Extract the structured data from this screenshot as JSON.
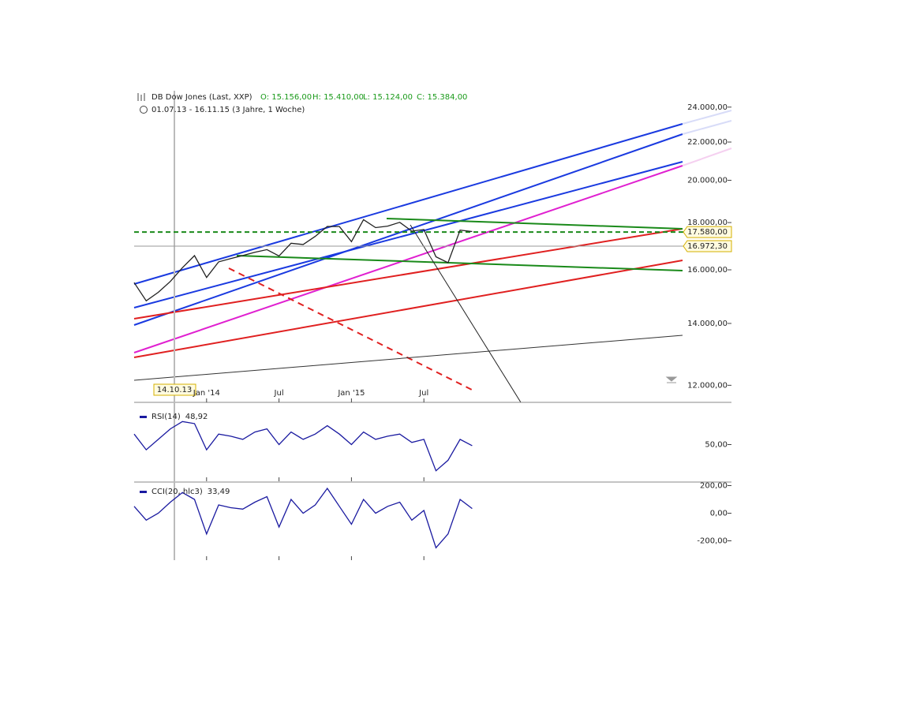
{
  "chart_data": [
    {
      "type": "line",
      "title": "DB Dow Jones (Last, XXP)",
      "subtitle": "01.07.13 - 16.11.15 (3 Jahre, 1 Woche)",
      "ohlc": [
        "O: 15.156,00",
        "H: 15.410,00",
        "L: 15.124,00",
        "C: 15.384,00"
      ],
      "crosshair_label": "14.10.13",
      "categories": [
        null,
        null,
        null,
        null,
        null,
        null,
        "Jan '14",
        null,
        null,
        null,
        null,
        null,
        "Jul",
        null,
        null,
        null,
        null,
        null,
        "Jan '15",
        null,
        null,
        null,
        null,
        null,
        "Jul",
        null,
        null,
        null,
        null
      ],
      "series": [
        {
          "color": "#222222",
          "values": [
            15500,
            14810,
            15130,
            15545,
            16086,
            16577,
            15699,
            16322,
            16458,
            16581,
            16717,
            16827,
            16563,
            17098,
            17043,
            17391,
            17828,
            17823,
            17165,
            18133,
            17776,
            17841,
            18011,
            17620,
            17690,
            16528,
            16285,
            17664,
            17600
          ]
        }
      ],
      "log_scale": true,
      "ylim": [
        11500,
        25000
      ],
      "yticks": [
        {
          "value": 12000,
          "label": "12.000,00"
        },
        {
          "value": 14000,
          "label": "14.000,00"
        },
        {
          "value": 16000,
          "label": "16.000,00"
        },
        {
          "value": 18000,
          "label": "18.000,00"
        },
        {
          "value": 20000,
          "label": "20.000,00"
        },
        {
          "value": 22000,
          "label": "22.000,00"
        },
        {
          "value": 24000,
          "label": "24.000,00"
        }
      ],
      "markers": [
        {
          "value": 17580,
          "label": "17.580,00",
          "color": "#1a8a1a"
        },
        {
          "value": 16972.3,
          "label": "16.972,30",
          "color": "#999999"
        }
      ]
    },
    {
      "type": "line",
      "title": "RSI(14)",
      "last": "48,92",
      "series": [
        {
          "color": "#1a1aa0",
          "values": [
            60,
            45,
            55,
            65,
            72,
            70,
            45,
            60,
            58,
            55,
            62,
            65,
            50,
            62,
            55,
            60,
            68,
            60,
            50,
            62,
            55,
            58,
            60,
            52,
            55,
            25,
            35,
            55,
            48.92
          ]
        }
      ],
      "ylim": [
        15,
        85
      ],
      "yticks": [
        {
          "value": 50,
          "label": "50,00"
        }
      ]
    },
    {
      "type": "line",
      "title": "CCI(20, hlc3)",
      "last": "33,49",
      "series": [
        {
          "color": "#1a1aa0",
          "values": [
            50,
            -50,
            0,
            80,
            150,
            100,
            -150,
            60,
            40,
            30,
            80,
            120,
            -100,
            100,
            0,
            60,
            180,
            50,
            -80,
            100,
            0,
            50,
            80,
            -50,
            20,
            -250,
            -150,
            100,
            33.49
          ]
        }
      ],
      "ylim": [
        -340,
        220
      ],
      "yticks": [
        {
          "value": -200,
          "label": "-200,00"
        },
        {
          "value": 0,
          "label": "0,00"
        },
        {
          "value": 200,
          "label": "200,00"
        }
      ]
    }
  ]
}
